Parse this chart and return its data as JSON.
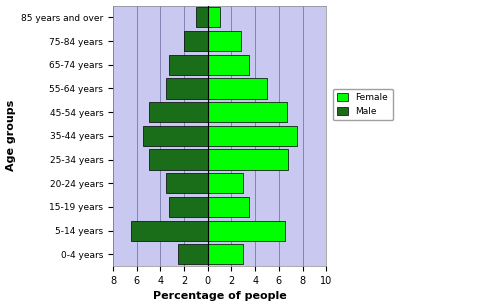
{
  "age_groups": [
    "0-4 years",
    "5-14 years",
    "15-19 years",
    "20-24 years",
    "25-34 years",
    "35-44 years",
    "45-54 years",
    "55-64 years",
    "65-74 years",
    "75-84 years",
    "85 years and over"
  ],
  "male": [
    2.5,
    6.5,
    3.3,
    3.5,
    5.0,
    5.5,
    5.0,
    3.5,
    3.3,
    2.0,
    1.0
  ],
  "female": [
    3.0,
    6.5,
    3.5,
    3.0,
    6.8,
    7.5,
    6.7,
    5.0,
    3.5,
    2.8,
    1.0
  ],
  "male_color": "#1a6e1a",
  "female_color": "#00ff00",
  "background_color": "#c8c8f0",
  "fig_bg": "#ffffff",
  "xlim_left": -8,
  "xlim_right": 10,
  "xlabel": "Percentage of people",
  "ylabel": "Age groups",
  "legend_female": "Female",
  "legend_male": "Male",
  "grid_color": "#7777aa",
  "bar_edge_color": "#000000",
  "xticks": [
    -8,
    -6,
    -4,
    -2,
    0,
    2,
    4,
    6,
    8,
    10
  ],
  "xtick_labels": [
    "8",
    "6",
    "4",
    "2",
    "0",
    "2",
    "4",
    "6",
    "8",
    "10"
  ]
}
